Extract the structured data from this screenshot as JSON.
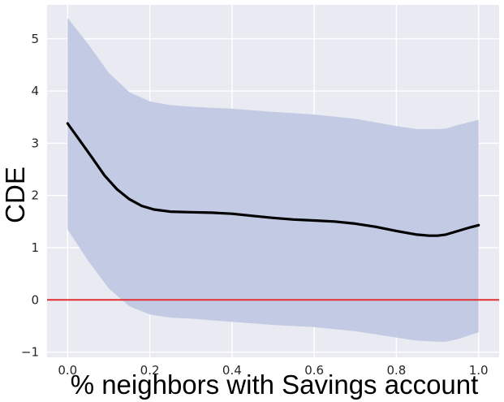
{
  "chart_data": {
    "type": "line",
    "title": "",
    "xlabel": "% neighbors with Savings account",
    "ylabel": "CDE",
    "xlim": [
      -0.05,
      1.05
    ],
    "ylim": [
      -1.1,
      5.65
    ],
    "grid": true,
    "x_ticks": [
      0.0,
      0.2,
      0.4,
      0.6,
      0.8,
      1.0
    ],
    "x_tick_labels": [
      "0.0",
      "0.2",
      "0.4",
      "0.6",
      "0.8",
      "1.0"
    ],
    "y_ticks": [
      -1,
      0,
      1,
      2,
      3,
      4,
      5
    ],
    "y_tick_labels": [
      "−1",
      "0",
      "1",
      "2",
      "3",
      "4",
      "5"
    ],
    "series": [
      {
        "kind": "line",
        "x": [
          0.0,
          0.03,
          0.06,
          0.09,
          0.12,
          0.15,
          0.18,
          0.21,
          0.25,
          0.3,
          0.35,
          0.4,
          0.45,
          0.5,
          0.55,
          0.6,
          0.65,
          0.7,
          0.75,
          0.8,
          0.85,
          0.88,
          0.9,
          0.92,
          0.95,
          0.98,
          1.0
        ],
        "y": [
          3.38,
          3.05,
          2.72,
          2.38,
          2.12,
          1.93,
          1.8,
          1.73,
          1.69,
          1.68,
          1.67,
          1.65,
          1.61,
          1.57,
          1.54,
          1.52,
          1.5,
          1.46,
          1.4,
          1.32,
          1.25,
          1.23,
          1.23,
          1.25,
          1.32,
          1.39,
          1.43
        ],
        "color": "#000000"
      },
      {
        "kind": "band",
        "x": [
          0.0,
          0.05,
          0.1,
          0.15,
          0.2,
          0.25,
          0.3,
          0.4,
          0.5,
          0.6,
          0.7,
          0.8,
          0.85,
          0.9,
          0.92,
          0.95,
          1.0
        ],
        "upper": [
          5.4,
          4.9,
          4.35,
          3.98,
          3.8,
          3.73,
          3.7,
          3.66,
          3.6,
          3.55,
          3.47,
          3.33,
          3.27,
          3.27,
          3.28,
          3.35,
          3.45
        ],
        "lower": [
          1.35,
          0.75,
          0.22,
          -0.12,
          -0.28,
          -0.34,
          -0.36,
          -0.42,
          -0.48,
          -0.52,
          -0.6,
          -0.72,
          -0.78,
          -0.8,
          -0.8,
          -0.75,
          -0.62
        ],
        "color": "#c2cbe3"
      },
      {
        "kind": "hline",
        "y": 0,
        "color": "#e03030"
      }
    ],
    "colors": {
      "plot_background": "#eaeaf2",
      "grid": "#ffffff",
      "band": "#c2cbe3",
      "line": "#000000",
      "reference_line": "#e03030"
    }
  }
}
